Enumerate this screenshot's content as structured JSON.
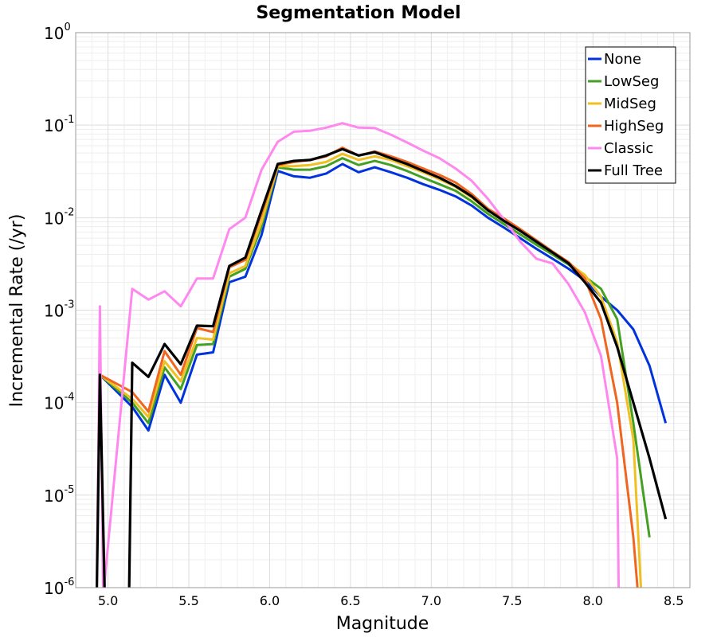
{
  "chart_data": {
    "type": "line",
    "title": "Segmentation Model",
    "xlabel": "Magnitude",
    "ylabel": "Incremental Rate (/yr)",
    "xlim": [
      4.8,
      8.6
    ],
    "ylim": [
      1e-06,
      1
    ],
    "yscale": "log",
    "x_ticks": [
      "5.0",
      "5.5",
      "6.0",
      "6.5",
      "7.0",
      "7.5",
      "8.0",
      "8.5"
    ],
    "y_ticks": [
      {
        "base": "10",
        "exp": "-6"
      },
      {
        "base": "10",
        "exp": "-5"
      },
      {
        "base": "10",
        "exp": "-4"
      },
      {
        "base": "10",
        "exp": "-3"
      },
      {
        "base": "10",
        "exp": "-2"
      },
      {
        "base": "10",
        "exp": "-1"
      },
      {
        "base": "10",
        "exp": "0"
      }
    ],
    "grid": true,
    "legend_position": "top-right",
    "series": [
      {
        "name": "None",
        "color": "#0033dd",
        "x": [
          4.95,
          5.15,
          5.25,
          5.35,
          5.45,
          5.55,
          5.65,
          5.75,
          5.85,
          5.95,
          6.05,
          6.15,
          6.25,
          6.35,
          6.45,
          6.55,
          6.65,
          6.75,
          6.85,
          6.95,
          7.05,
          7.15,
          7.25,
          7.35,
          7.45,
          7.55,
          7.65,
          7.75,
          7.85,
          7.95,
          8.05,
          8.15,
          8.25,
          8.35,
          8.45
        ],
        "y": [
          0.0002,
          9e-05,
          5e-05,
          0.0002,
          0.0001,
          0.00033,
          0.00035,
          0.002,
          0.0023,
          0.0065,
          0.032,
          0.028,
          0.027,
          0.03,
          0.038,
          0.031,
          0.035,
          0.031,
          0.027,
          0.023,
          0.02,
          0.017,
          0.0135,
          0.01,
          0.0078,
          0.006,
          0.0046,
          0.0036,
          0.0028,
          0.0021,
          0.0014,
          0.001,
          0.00062,
          0.00025,
          6e-05
        ]
      },
      {
        "name": "LowSeg",
        "color": "#44a022",
        "x": [
          4.95,
          5.15,
          5.25,
          5.35,
          5.45,
          5.55,
          5.65,
          5.75,
          5.85,
          5.95,
          6.05,
          6.15,
          6.25,
          6.35,
          6.45,
          6.55,
          6.65,
          6.75,
          6.85,
          6.95,
          7.05,
          7.15,
          7.25,
          7.35,
          7.45,
          7.55,
          7.65,
          7.75,
          7.85,
          7.95,
          8.05,
          8.15,
          8.25,
          8.35
        ],
        "y": [
          0.0002,
          0.0001,
          6e-05,
          0.00024,
          0.00014,
          0.00042,
          0.00043,
          0.0023,
          0.0028,
          0.008,
          0.035,
          0.033,
          0.033,
          0.036,
          0.044,
          0.037,
          0.041,
          0.037,
          0.032,
          0.027,
          0.023,
          0.0195,
          0.015,
          0.011,
          0.0085,
          0.0066,
          0.0051,
          0.004,
          0.0031,
          0.0023,
          0.0017,
          0.0008,
          6e-05,
          3.5e-06
        ]
      },
      {
        "name": "MidSeg",
        "color": "#f0c020",
        "x": [
          4.95,
          5.15,
          5.25,
          5.35,
          5.45,
          5.55,
          5.65,
          5.75,
          5.85,
          5.95,
          6.05,
          6.15,
          6.25,
          6.35,
          6.45,
          6.55,
          6.65,
          6.75,
          6.85,
          6.95,
          7.05,
          7.15,
          7.25,
          7.35,
          7.45,
          7.55,
          7.65,
          7.75,
          7.85,
          7.95,
          8.05,
          8.15,
          8.25,
          8.3
        ],
        "y": [
          0.0002,
          0.00011,
          7e-05,
          0.00028,
          0.00017,
          0.0005,
          0.00048,
          0.0025,
          0.003,
          0.009,
          0.036,
          0.036,
          0.037,
          0.04,
          0.049,
          0.042,
          0.046,
          0.042,
          0.036,
          0.031,
          0.026,
          0.0215,
          0.0165,
          0.012,
          0.0093,
          0.0072,
          0.0055,
          0.0042,
          0.0032,
          0.0024,
          0.0014,
          0.00045,
          4e-05,
          8e-07
        ]
      },
      {
        "name": "HighSeg",
        "color": "#ee6620",
        "x": [
          4.95,
          5.15,
          5.25,
          5.35,
          5.45,
          5.55,
          5.65,
          5.75,
          5.85,
          5.95,
          6.05,
          6.15,
          6.25,
          6.35,
          6.45,
          6.55,
          6.65,
          6.75,
          6.85,
          6.95,
          7.05,
          7.15,
          7.25,
          7.35,
          7.45,
          7.55,
          7.65,
          7.75,
          7.85,
          7.95,
          8.05,
          8.15,
          8.25,
          8.28
        ],
        "y": [
          0.0002,
          0.00013,
          8e-05,
          0.00036,
          0.0002,
          0.00064,
          0.00058,
          0.0029,
          0.0035,
          0.011,
          0.037,
          0.04,
          0.042,
          0.046,
          0.057,
          0.047,
          0.052,
          0.046,
          0.04,
          0.034,
          0.029,
          0.024,
          0.018,
          0.0125,
          0.0098,
          0.0075,
          0.0057,
          0.0043,
          0.0033,
          0.0022,
          0.0008,
          0.0001,
          3.5e-06,
          8e-07
        ]
      },
      {
        "name": "Classic",
        "color": "#ff88ee",
        "x": [
          4.93,
          4.95,
          4.97,
          5.15,
          5.25,
          5.35,
          5.45,
          5.55,
          5.65,
          5.75,
          5.85,
          5.95,
          6.05,
          6.15,
          6.25,
          6.35,
          6.45,
          6.55,
          6.65,
          6.75,
          6.85,
          6.95,
          7.05,
          7.15,
          7.25,
          7.35,
          7.45,
          7.55,
          7.65,
          7.75,
          7.85,
          7.95,
          8.05,
          8.15,
          8.16
        ],
        "y": [
          8e-07,
          0.0011,
          8e-07,
          0.0017,
          0.0013,
          0.0016,
          0.0011,
          0.0022,
          0.0022,
          0.0075,
          0.01,
          0.033,
          0.066,
          0.085,
          0.087,
          0.094,
          0.105,
          0.094,
          0.093,
          0.079,
          0.065,
          0.053,
          0.044,
          0.034,
          0.025,
          0.016,
          0.0095,
          0.0055,
          0.0036,
          0.0032,
          0.0019,
          0.00095,
          0.00032,
          2.5e-05,
          8e-07
        ]
      },
      {
        "name": "Full Tree",
        "color": "#000000",
        "x": [
          4.93,
          4.95,
          4.98,
          5.13,
          5.15,
          5.25,
          5.35,
          5.45,
          5.55,
          5.65,
          5.75,
          5.85,
          5.95,
          6.05,
          6.15,
          6.25,
          6.35,
          6.45,
          6.55,
          6.65,
          6.75,
          6.85,
          6.95,
          7.05,
          7.15,
          7.25,
          7.35,
          7.45,
          7.55,
          7.65,
          7.75,
          7.85,
          7.95,
          8.05,
          8.15,
          8.25,
          8.35,
          8.45
        ],
        "y": [
          8e-07,
          0.0002,
          8e-07,
          8e-07,
          0.00027,
          0.00019,
          0.00043,
          0.00026,
          0.00068,
          0.00067,
          0.003,
          0.0037,
          0.012,
          0.038,
          0.041,
          0.042,
          0.047,
          0.055,
          0.047,
          0.051,
          0.044,
          0.038,
          0.032,
          0.027,
          0.022,
          0.017,
          0.012,
          0.0092,
          0.0072,
          0.0055,
          0.0042,
          0.0032,
          0.002,
          0.0012,
          0.0004,
          0.0001,
          2.5e-05,
          5.5e-06
        ]
      }
    ]
  }
}
